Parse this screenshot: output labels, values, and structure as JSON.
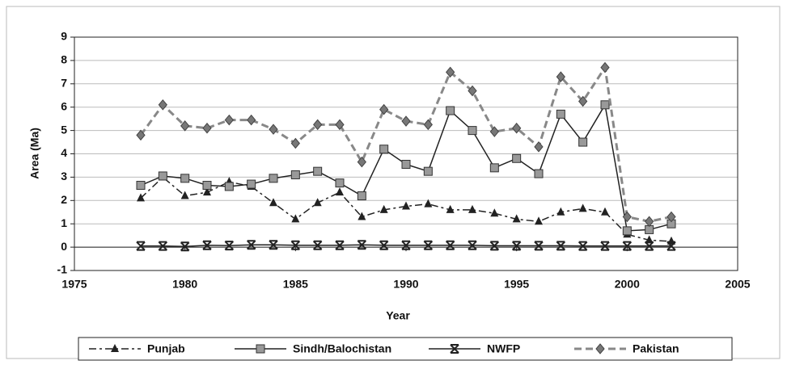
{
  "chart_data": {
    "type": "line",
    "x": [
      1978,
      1979,
      1980,
      1981,
      1982,
      1983,
      1984,
      1985,
      1986,
      1987,
      1988,
      1989,
      1990,
      1991,
      1992,
      1993,
      1994,
      1995,
      1996,
      1997,
      1998,
      1999,
      2000,
      2001,
      2002
    ],
    "x_label": "Year",
    "y_label": "Area (Ma)",
    "xlim": [
      1975,
      2005
    ],
    "xticks": [
      1975,
      1980,
      1985,
      1990,
      1995,
      2000,
      2005
    ],
    "ylim": [
      -1,
      9
    ],
    "yticks": [
      -1,
      0,
      1,
      2,
      3,
      4,
      5,
      6,
      7,
      8,
      9
    ],
    "grid": true,
    "legend": "bottom",
    "series": [
      {
        "name": "Punjab",
        "color": "#222222",
        "marker": "triangle",
        "dash": "dashdot",
        "values": [
          2.1,
          3.0,
          2.2,
          2.35,
          2.8,
          2.6,
          1.9,
          1.2,
          1.9,
          2.35,
          1.3,
          1.6,
          1.75,
          1.85,
          1.6,
          1.6,
          1.45,
          1.2,
          1.1,
          1.5,
          1.65,
          1.5,
          0.55,
          0.3,
          0.25
        ]
      },
      {
        "name": "Sindh/Balochistan",
        "color": "#222222",
        "marker": "square",
        "dash": "solid",
        "values": [
          2.65,
          3.05,
          2.95,
          2.65,
          2.6,
          2.7,
          2.95,
          3.1,
          3.25,
          2.75,
          2.2,
          4.2,
          3.55,
          3.25,
          5.85,
          5.0,
          3.4,
          3.8,
          3.15,
          5.7,
          4.5,
          6.1,
          0.7,
          0.75,
          1.0
        ]
      },
      {
        "name": "NWFP",
        "color": "#222222",
        "marker": "x",
        "dash": "solid",
        "values": [
          0.05,
          0.05,
          0.03,
          0.08,
          0.07,
          0.1,
          0.1,
          0.08,
          0.08,
          0.08,
          0.1,
          0.08,
          0.08,
          0.08,
          0.08,
          0.08,
          0.06,
          0.06,
          0.06,
          0.06,
          0.05,
          0.05,
          0.05,
          0.05,
          0.05
        ]
      },
      {
        "name": "Pakistan",
        "color": "#888888",
        "marker": "diamond",
        "dash": "dashed",
        "values": [
          4.8,
          6.1,
          5.2,
          5.1,
          5.45,
          5.45,
          5.05,
          4.45,
          5.25,
          5.25,
          3.65,
          5.9,
          5.4,
          5.25,
          7.5,
          6.7,
          4.95,
          5.1,
          4.3,
          7.3,
          6.25,
          7.7,
          1.3,
          1.1,
          1.3
        ]
      }
    ]
  }
}
